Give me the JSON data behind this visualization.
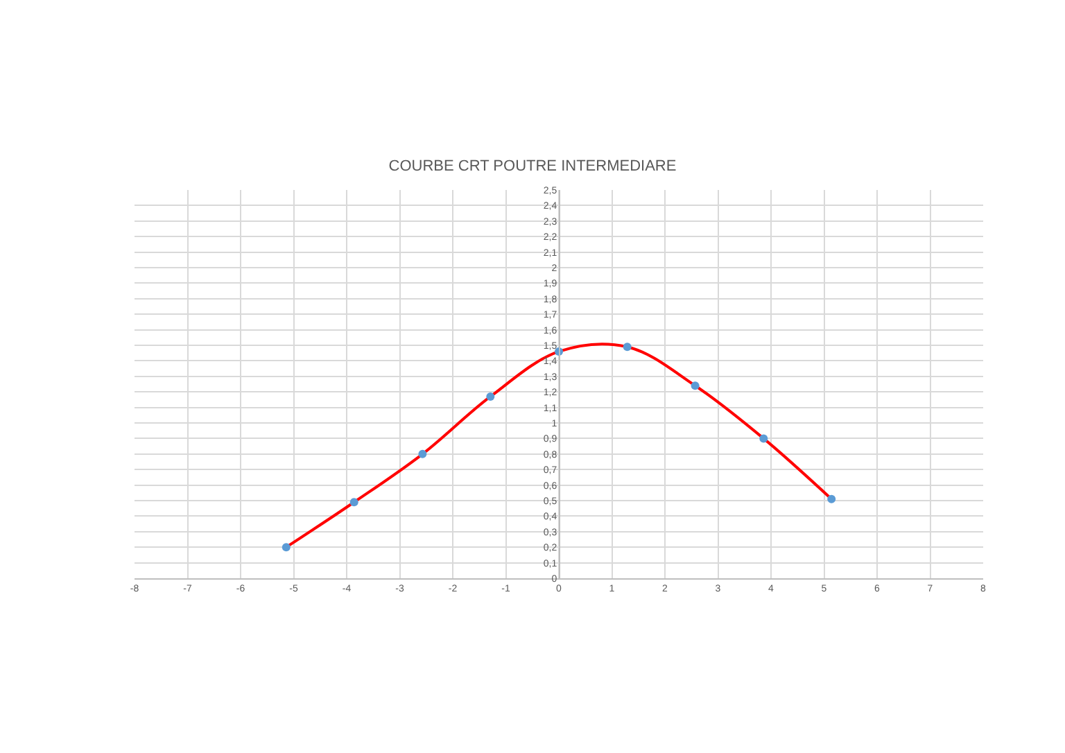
{
  "chart_data": {
    "type": "line",
    "title": "COURBE CRT POUTRE INTERMEDIARE",
    "x": [
      -5.14,
      -3.86,
      -2.57,
      -1.29,
      0,
      1.29,
      2.57,
      3.86,
      5.14
    ],
    "series": [
      {
        "color": "#ff0000",
        "colors": [
          "#5b9bd5",
          "#5b9bd5",
          "#5b9bd5",
          "#5b9bd5",
          "#5b9bd5",
          "#5b9bd5",
          "#5b9bd5",
          "#5b9bd5",
          "#5b9bd5"
        ],
        "values": [
          0.2,
          0.49,
          0.8,
          1.17,
          1.46,
          1.49,
          1.24,
          0.9,
          0.51
        ]
      }
    ],
    "xlim": [
      -8,
      8
    ],
    "xticks": [
      -8,
      -7,
      -6,
      -5,
      -4,
      -3,
      -2,
      -1,
      0,
      1,
      2,
      3,
      4,
      5,
      6,
      7,
      8
    ],
    "ylim": [
      0,
      2.5
    ],
    "yticks": [
      0,
      {
        "value": 0.1,
        "label": "0,1"
      },
      {
        "value": 0.2,
        "label": "0,2"
      },
      {
        "value": 0.3,
        "label": "0,3"
      },
      {
        "value": 0.4,
        "label": "0,4"
      },
      {
        "value": 0.5,
        "label": "0,5"
      },
      {
        "value": 0.6,
        "label": "0,6"
      },
      {
        "value": 0.7,
        "label": "0,7"
      },
      {
        "value": 0.8,
        "label": "0,8"
      },
      {
        "value": 0.9,
        "label": "0,9"
      },
      1,
      {
        "value": 1.1,
        "label": "1,1"
      },
      {
        "value": 1.2,
        "label": "1,2"
      },
      {
        "value": 1.3,
        "label": "1,3"
      },
      {
        "value": 1.4,
        "label": "1,4"
      },
      {
        "value": 1.5,
        "label": "1,5"
      },
      {
        "value": 1.6,
        "label": "1,6"
      },
      {
        "value": 1.7,
        "label": "1,7"
      },
      {
        "value": 1.8,
        "label": "1,8"
      },
      {
        "value": 1.9,
        "label": "1,9"
      },
      2,
      {
        "value": 2.1,
        "label": "2,1"
      },
      {
        "value": 2.2,
        "label": "2,2"
      },
      {
        "value": 2.3,
        "label": "2,3"
      },
      {
        "value": 2.4,
        "label": "2,4"
      },
      {
        "value": 2.5,
        "label": "2,5"
      }
    ],
    "grid": true,
    "marker": "circle",
    "line_style": "solid"
  }
}
